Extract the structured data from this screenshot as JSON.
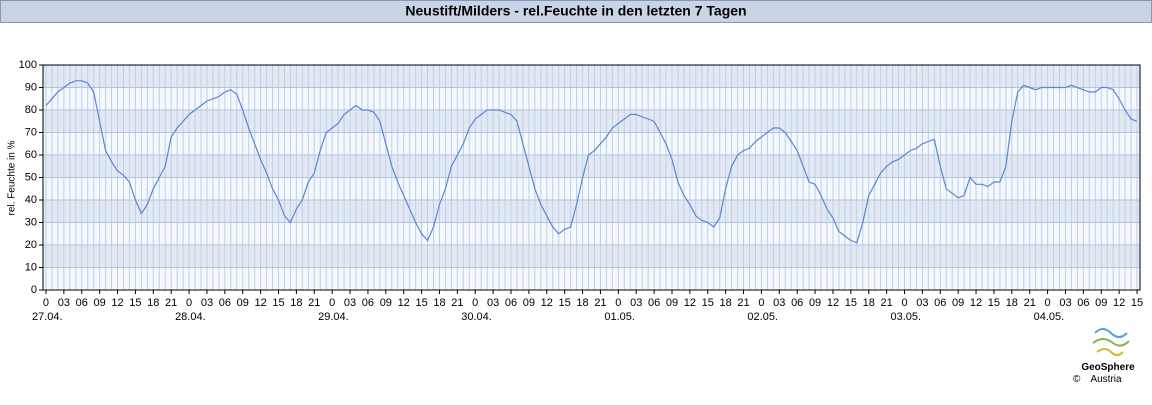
{
  "chart_data": {
    "type": "line",
    "title": "Neustift/Milders - rel.Feuchte in den letzten 7 Tagen",
    "y_label": "rel. Feuchte in %",
    "logo": {
      "name": "GeoSphere",
      "sub": "Austria",
      "copyright": "©"
    },
    "xlim": [
      -0.5,
      183.5
    ],
    "ylim": [
      0,
      100
    ],
    "yticks": [
      0,
      10,
      20,
      30,
      40,
      50,
      60,
      70,
      80,
      90,
      100
    ],
    "grid": true,
    "xticks": [
      {
        "value": 0,
        "label": "0"
      },
      {
        "value": 3,
        "label": "03"
      },
      {
        "value": 6,
        "label": "06"
      },
      {
        "value": 9,
        "label": "09"
      },
      {
        "value": 12,
        "label": "12"
      },
      {
        "value": 15,
        "label": "15"
      },
      {
        "value": 18,
        "label": "18"
      },
      {
        "value": 21,
        "label": "21"
      },
      {
        "value": 24,
        "label": "0"
      },
      {
        "value": 27,
        "label": "03"
      },
      {
        "value": 30,
        "label": "06"
      },
      {
        "value": 33,
        "label": "09"
      },
      {
        "value": 36,
        "label": "12"
      },
      {
        "value": 39,
        "label": "15"
      },
      {
        "value": 42,
        "label": "18"
      },
      {
        "value": 45,
        "label": "21"
      },
      {
        "value": 48,
        "label": "0"
      },
      {
        "value": 51,
        "label": "03"
      },
      {
        "value": 54,
        "label": "06"
      },
      {
        "value": 57,
        "label": "09"
      },
      {
        "value": 60,
        "label": "12"
      },
      {
        "value": 63,
        "label": "15"
      },
      {
        "value": 66,
        "label": "18"
      },
      {
        "value": 69,
        "label": "21"
      },
      {
        "value": 72,
        "label": "0"
      },
      {
        "value": 75,
        "label": "03"
      },
      {
        "value": 78,
        "label": "06"
      },
      {
        "value": 81,
        "label": "09"
      },
      {
        "value": 84,
        "label": "12"
      },
      {
        "value": 87,
        "label": "15"
      },
      {
        "value": 90,
        "label": "18"
      },
      {
        "value": 93,
        "label": "21"
      },
      {
        "value": 96,
        "label": "0"
      },
      {
        "value": 99,
        "label": "03"
      },
      {
        "value": 102,
        "label": "06"
      },
      {
        "value": 105,
        "label": "09"
      },
      {
        "value": 108,
        "label": "12"
      },
      {
        "value": 111,
        "label": "15"
      },
      {
        "value": 114,
        "label": "18"
      },
      {
        "value": 117,
        "label": "21"
      },
      {
        "value": 120,
        "label": "0"
      },
      {
        "value": 123,
        "label": "03"
      },
      {
        "value": 126,
        "label": "06"
      },
      {
        "value": 129,
        "label": "09"
      },
      {
        "value": 132,
        "label": "12"
      },
      {
        "value": 135,
        "label": "15"
      },
      {
        "value": 138,
        "label": "18"
      },
      {
        "value": 141,
        "label": "21"
      },
      {
        "value": 144,
        "label": "0"
      },
      {
        "value": 147,
        "label": "03"
      },
      {
        "value": 150,
        "label": "06"
      },
      {
        "value": 153,
        "label": "09"
      },
      {
        "value": 156,
        "label": "12"
      },
      {
        "value": 159,
        "label": "15"
      },
      {
        "value": 162,
        "label": "18"
      },
      {
        "value": 165,
        "label": "21"
      },
      {
        "value": 168,
        "label": "0"
      },
      {
        "value": 171,
        "label": "03"
      },
      {
        "value": 174,
        "label": "06"
      },
      {
        "value": 177,
        "label": "09"
      },
      {
        "value": 180,
        "label": "12"
      },
      {
        "value": 183,
        "label": "15"
      }
    ],
    "day_labels": [
      {
        "value": 0,
        "label": "27.04."
      },
      {
        "value": 24,
        "label": "28.04."
      },
      {
        "value": 48,
        "label": "29.04."
      },
      {
        "value": 72,
        "label": "30.04."
      },
      {
        "value": 96,
        "label": "01.05."
      },
      {
        "value": 120,
        "label": "02.05."
      },
      {
        "value": 144,
        "label": "03.05."
      },
      {
        "value": 168,
        "label": "04.05."
      }
    ],
    "x": [
      0,
      1,
      2,
      3,
      4,
      5,
      6,
      7,
      8,
      9,
      10,
      11,
      12,
      13,
      14,
      15,
      16,
      17,
      18,
      19,
      20,
      21,
      22,
      23,
      24,
      25,
      26,
      27,
      28,
      29,
      30,
      31,
      32,
      33,
      34,
      35,
      36,
      37,
      38,
      39,
      40,
      41,
      42,
      43,
      44,
      45,
      46,
      47,
      48,
      49,
      50,
      51,
      52,
      53,
      54,
      55,
      56,
      57,
      58,
      59,
      60,
      61,
      62,
      63,
      64,
      65,
      66,
      67,
      68,
      69,
      70,
      71,
      72,
      73,
      74,
      75,
      76,
      77,
      78,
      79,
      80,
      81,
      82,
      83,
      84,
      85,
      86,
      87,
      88,
      89,
      90,
      91,
      92,
      93,
      94,
      95,
      96,
      97,
      98,
      99,
      100,
      101,
      102,
      103,
      104,
      105,
      106,
      107,
      108,
      109,
      110,
      111,
      112,
      113,
      114,
      115,
      116,
      117,
      118,
      119,
      120,
      121,
      122,
      123,
      124,
      125,
      126,
      127,
      128,
      129,
      130,
      131,
      132,
      133,
      134,
      135,
      136,
      137,
      138,
      139,
      140,
      141,
      142,
      143,
      144,
      145,
      146,
      147,
      148,
      149,
      150,
      151,
      152,
      153,
      154,
      155,
      156,
      157,
      158,
      159,
      160,
      161,
      162,
      163,
      164,
      165,
      166,
      167,
      168,
      169,
      170,
      171,
      172,
      173,
      174,
      175,
      176,
      177,
      178,
      179,
      180,
      181,
      182,
      183
    ],
    "series": [
      {
        "color": "#5b86d6",
        "values": [
          82,
          85,
          88,
          90,
          92,
          93,
          93,
          92,
          88,
          75,
          62,
          57,
          53,
          51,
          48,
          40,
          34,
          38,
          45,
          50,
          55,
          68,
          72,
          75,
          78,
          80,
          82,
          84,
          85,
          86,
          88,
          89,
          87,
          80,
          72,
          65,
          58,
          52,
          45,
          40,
          33,
          30,
          36,
          40,
          48,
          52,
          62,
          70,
          72,
          74,
          78,
          80,
          82,
          80,
          80,
          79,
          75,
          65,
          55,
          48,
          42,
          36,
          30,
          25,
          22,
          28,
          38,
          45,
          55,
          60,
          65,
          72,
          76,
          78,
          80,
          80,
          80,
          79,
          78,
          75,
          65,
          55,
          45,
          38,
          33,
          28,
          25,
          27,
          28,
          38,
          50,
          60,
          62,
          65,
          68,
          72,
          74,
          76,
          78,
          78,
          77,
          76,
          75,
          70,
          65,
          58,
          48,
          42,
          38,
          33,
          31,
          30,
          28,
          32,
          45,
          55,
          60,
          62,
          63,
          66,
          68,
          70,
          72,
          72,
          70,
          66,
          62,
          55,
          48,
          47,
          42,
          36,
          32,
          26,
          24,
          22,
          21,
          30,
          42,
          47,
          52,
          55,
          57,
          58,
          60,
          62,
          63,
          65,
          66,
          67,
          55,
          45,
          43,
          41,
          42,
          50,
          47,
          47,
          46,
          48,
          48,
          55,
          75,
          88,
          91,
          90,
          89,
          90,
          90,
          90,
          90,
          90,
          91,
          90,
          89,
          88,
          88,
          90,
          90,
          89,
          85,
          80,
          76,
          75
        ]
      }
    ]
  }
}
